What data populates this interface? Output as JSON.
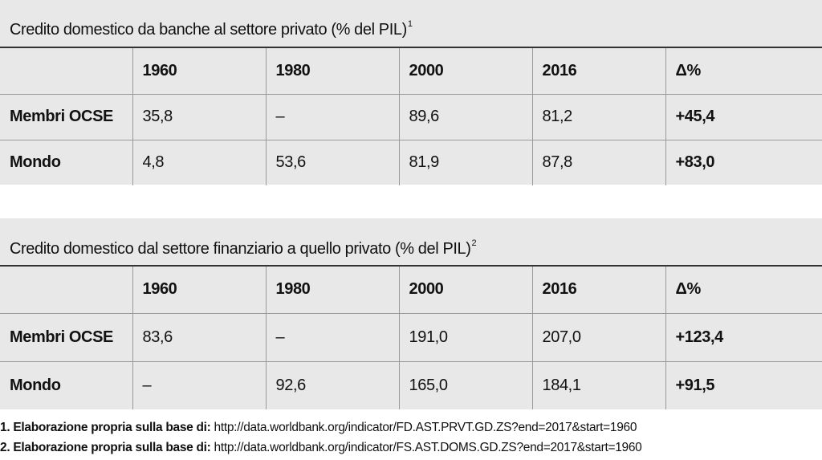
{
  "tables": [
    {
      "title": "Credito domestico da banche al settore privato (% del PIL)",
      "note_ref": "1",
      "header": [
        "",
        "1960",
        "1980",
        "2000",
        "2016",
        "Δ%"
      ],
      "rows": [
        [
          "Membri OCSE",
          "35,8",
          "–",
          "89,6",
          "81,2",
          "+45,4"
        ],
        [
          "Mondo",
          "4,8",
          "53,6",
          "81,9",
          "87,8",
          "+83,0"
        ]
      ]
    },
    {
      "title": "Credito domestico dal settore finanziario a quello privato (% del PIL)",
      "note_ref": "2",
      "header": [
        "",
        "1960",
        "1980",
        "2000",
        "2016",
        "Δ%"
      ],
      "rows": [
        [
          "Membri OCSE",
          "83,6",
          "–",
          "191,0",
          "207,0",
          "+123,4"
        ],
        [
          "Mondo",
          "–",
          "92,6",
          "165,0",
          "184,1",
          "+91,5"
        ]
      ]
    }
  ],
  "footnotes": [
    {
      "lead": "1. Elaborazione propria sulla base di:",
      "url": "http://data.worldbank.org/indicator/FD.AST.PRVT.GD.ZS?end=2017&start=1960"
    },
    {
      "lead": "2. Elaborazione propria sulla base di:",
      "url": "http://data.worldbank.org/indicator/FS.AST.DOMS.GD.ZS?end=2017&start=1960"
    }
  ]
}
